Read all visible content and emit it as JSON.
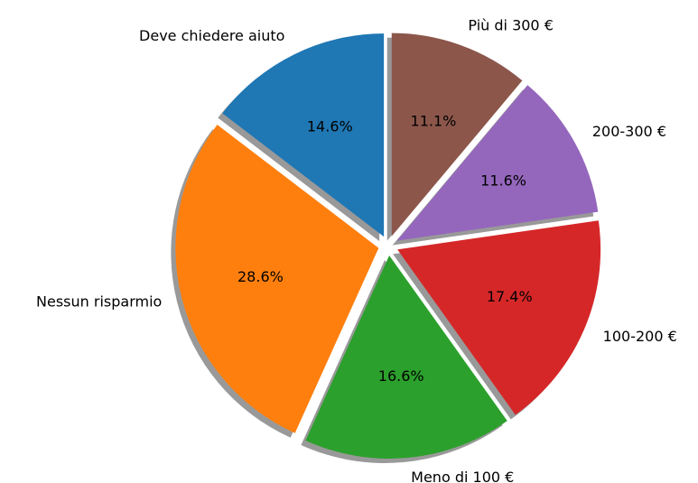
{
  "chart_data": {
    "type": "pie",
    "categories": [
      "Deve chiedere aiuto",
      "Nessun risparmio",
      "Meno di 100 €",
      "100-200 €",
      "200-300 €",
      "Più di 300 €"
    ],
    "values": [
      14.6,
      28.6,
      16.6,
      17.4,
      11.6,
      11.1
    ],
    "value_labels": [
      "14.6%",
      "28.6%",
      "16.6%",
      "17.4%",
      "11.6%",
      "11.1%"
    ],
    "colors": [
      "#1f77b4",
      "#ff7f0e",
      "#2ca02c",
      "#d62728",
      "#9467bd",
      "#8c564b"
    ],
    "start_angle": 90,
    "shadow": true,
    "explode": true
  }
}
